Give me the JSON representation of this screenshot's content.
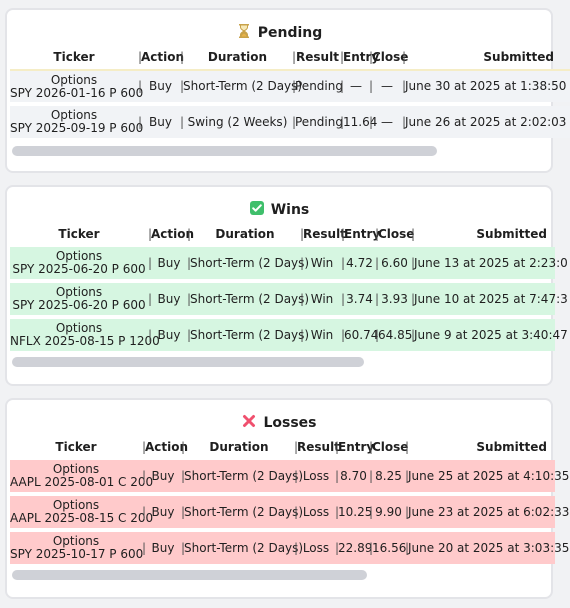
{
  "columns": [
    "Ticker",
    "|Action|",
    "Duration",
    "|",
    "Result",
    "|Entry|Close|",
    "Submitted"
  ],
  "headers": {
    "ticker": "Ticker",
    "action": "Action",
    "duration": "Duration",
    "result": "Result",
    "entry": "Entry",
    "close": "Close",
    "submitted": "Submitted"
  },
  "sections": {
    "pending": {
      "title": "Pending",
      "icon": "hourglass-icon",
      "icon_glyph": "⏳",
      "rows": [
        {
          "type": "Options",
          "symbol": "SPY 2026-01-16 P 600",
          "action": "Buy",
          "duration": "Short-Term (2 Days)",
          "result": "Pending",
          "entry": "—",
          "close": "—",
          "submitted": "June 30 at 2025 at 1:38:50"
        },
        {
          "type": "Options",
          "symbol": "SPY 2025-09-19 P 600",
          "action": "Buy",
          "duration": "Swing (2 Weeks)",
          "result": "Pending",
          "entry": "11.64",
          "close": "—",
          "submitted": "June 26 at 2025 at 2:02:03"
        }
      ]
    },
    "wins": {
      "title": "Wins",
      "icon": "check-mark-icon",
      "icon_glyph": "✓",
      "rows": [
        {
          "type": "Options",
          "symbol": "SPY 2025-06-20 P 600",
          "action": "Buy",
          "duration": "Short-Term (2 Days)",
          "result": "Win",
          "entry": "4.72",
          "close": "6.60",
          "submitted": "June 13 at 2025 at 2:23:0"
        },
        {
          "type": "Options",
          "symbol": "SPY 2025-06-20 P 600",
          "action": "Buy",
          "duration": "Short-Term (2 Days)",
          "result": "Win",
          "entry": "3.74",
          "close": "3.93",
          "submitted": "June 10 at 2025 at 7:47:3"
        },
        {
          "type": "Options",
          "symbol": "NFLX 2025-08-15 P 1200",
          "action": "Buy",
          "duration": "Short-Term (2 Days)",
          "result": "Win",
          "entry": "60.74",
          "close": "64.85",
          "submitted": "June 9 at 2025 at 3:40:47"
        }
      ]
    },
    "losses": {
      "title": "Losses",
      "icon": "cross-mark-icon",
      "icon_glyph": "✕",
      "rows": [
        {
          "type": "Options",
          "symbol": "AAPL 2025-08-01 C 200",
          "action": "Buy",
          "duration": "Short-Term (2 Days)",
          "result": "Loss",
          "entry": "8.70",
          "close": "8.25",
          "submitted": "June 25 at 2025 at 4:10:35"
        },
        {
          "type": "Options",
          "symbol": "AAPL 2025-08-15 C 200",
          "action": "Buy",
          "duration": "Short-Term (2 Days)",
          "result": "Loss",
          "entry": "10.25",
          "close": "9.90",
          "submitted": "June 23 at 2025 at 6:02:33"
        },
        {
          "type": "Options",
          "symbol": "SPY 2025-10-17 P 600",
          "action": "Buy",
          "duration": "Short-Term (2 Days)",
          "result": "Loss",
          "entry": "22.89",
          "close": "16.56",
          "submitted": "June 20 at 2025 at 3:03:35"
        }
      ]
    }
  },
  "colors": {
    "pending_row": "#f1f3f6",
    "win_row": "#d6f6e1",
    "loss_row": "#ffcacb",
    "win_icon": "#3fbf6b",
    "loss_icon": "#f0506e",
    "hourglass": "#c8a24a"
  }
}
